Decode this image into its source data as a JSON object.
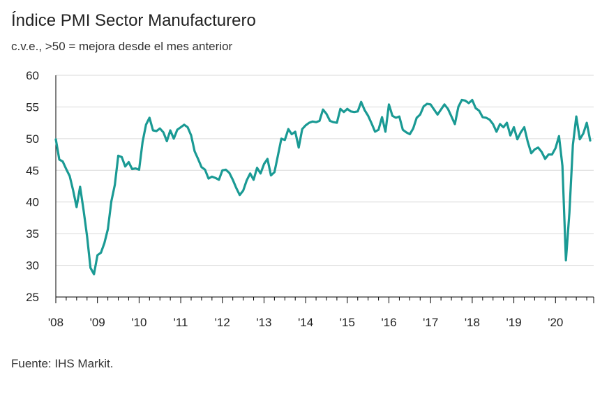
{
  "title": "Índice PMI Sector Manufacturero",
  "subtitle": "c.v.e., >50 = mejora desde el mes anterior",
  "source": "Fuente: IHS Markit.",
  "colors": {
    "line": "#1a9a94",
    "grid": "#d9d9d9",
    "axis": "#000000"
  },
  "chart_data": {
    "type": "line",
    "title": "Índice PMI Sector Manufacturero",
    "subtitle": "c.v.e., >50 = mejora desde el mes anterior",
    "xlabel": "",
    "ylabel": "",
    "ylim": [
      25,
      60
    ],
    "yticks": [
      25,
      30,
      35,
      40,
      45,
      50,
      55,
      60
    ],
    "x_tick_labels": [
      "'08",
      "'09",
      "'10",
      "'11",
      "'12",
      "'13",
      "'14",
      "'15",
      "'16",
      "'17",
      "'18",
      "'19",
      "'20"
    ],
    "x_start": "2008-01",
    "x_end": "2020-11",
    "grid": true,
    "legend": "none",
    "series": [
      {
        "values": [
          49.9,
          46.7,
          46.4,
          45.2,
          44.1,
          41.8,
          39.2,
          42.4,
          38.7,
          34.6,
          29.6,
          28.6,
          31.6,
          32.0,
          33.5,
          35.7,
          40.1,
          42.7,
          47.3,
          47.1,
          45.6,
          46.3,
          45.2,
          45.3,
          45.1,
          49.5,
          52.2,
          53.3,
          51.3,
          51.2,
          51.6,
          51.0,
          49.6,
          51.3,
          50.0,
          51.4,
          51.8,
          52.2,
          51.8,
          50.5,
          48.0,
          46.8,
          45.5,
          45.1,
          43.7,
          44.0,
          43.8,
          43.5,
          45.0,
          45.1,
          44.6,
          43.5,
          42.2,
          41.1,
          41.8,
          43.4,
          44.5,
          43.5,
          45.4,
          44.5,
          46.0,
          46.8,
          44.2,
          44.7,
          47.3,
          50.0,
          49.8,
          51.5,
          50.7,
          51.1,
          48.6,
          51.5,
          52.1,
          52.5,
          52.7,
          52.6,
          52.8,
          54.6,
          53.9,
          52.8,
          52.6,
          52.5,
          54.7,
          54.2,
          54.7,
          54.3,
          54.2,
          54.3,
          55.8,
          54.5,
          53.6,
          52.4,
          51.1,
          51.4,
          53.4,
          51.1,
          55.4,
          53.6,
          53.3,
          53.5,
          51.4,
          51.0,
          50.7,
          51.6,
          53.3,
          53.8,
          55.1,
          55.5,
          55.4,
          54.6,
          53.8,
          54.6,
          55.4,
          54.7,
          53.5,
          52.3,
          55.0,
          56.1,
          56.0,
          55.6,
          56.1,
          54.8,
          54.4,
          53.4,
          53.3,
          53.0,
          52.3,
          51.1,
          52.3,
          51.8,
          52.5,
          50.5,
          51.8,
          49.9,
          51.0,
          51.8,
          49.5,
          47.7,
          48.3,
          48.6,
          47.9,
          46.8,
          47.5,
          47.5,
          48.5,
          50.4,
          45.7,
          30.8,
          38.3,
          49.0,
          53.5,
          49.9,
          50.8,
          52.5,
          49.7
        ]
      }
    ]
  }
}
